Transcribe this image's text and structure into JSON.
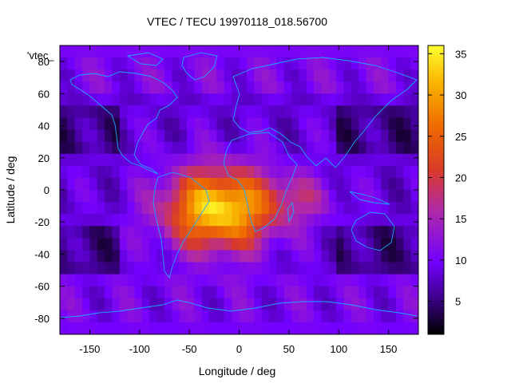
{
  "chart_data": {
    "type": "heatmap",
    "title": "VTEC / TECU 19970118_018.56700",
    "xlabel": "Longitude / deg",
    "ylabel": "Latitude / deg",
    "xlim": [
      -180,
      180
    ],
    "ylim": [
      -90,
      90
    ],
    "xticks": [
      -150,
      -100,
      -50,
      0,
      50,
      100,
      150
    ],
    "yticks": [
      -80,
      -60,
      -40,
      -20,
      0,
      20,
      40,
      60,
      80
    ],
    "colorbar": {
      "range": [
        1,
        36
      ],
      "ticks": [
        5,
        10,
        15,
        20,
        25,
        30,
        35
      ],
      "colors": [
        "#000000",
        "#3b0085",
        "#7300ff",
        "#b02aa8",
        "#d93b28",
        "#ee6a00",
        "#f9b400",
        "#ffff2e"
      ]
    },
    "legend": "'vtec_",
    "overlay": "coastlines",
    "peak": {
      "lon": -20,
      "lat": -12,
      "value": 36
    }
  }
}
